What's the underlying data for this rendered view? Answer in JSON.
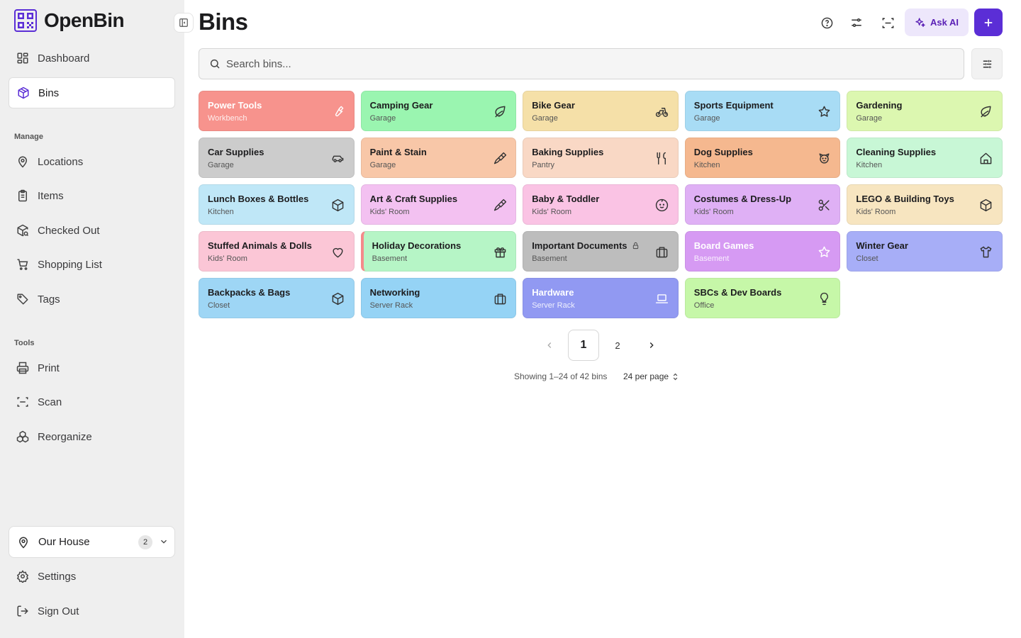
{
  "app": {
    "name": "OpenBin"
  },
  "sidebar": {
    "nav": [
      {
        "label": "Dashboard",
        "icon": "dashboard-icon"
      },
      {
        "label": "Bins",
        "icon": "package-icon",
        "active": true
      }
    ],
    "manage_label": "Manage",
    "manage": [
      {
        "label": "Locations",
        "icon": "map-pin-icon"
      },
      {
        "label": "Items",
        "icon": "clipboard-list-icon"
      },
      {
        "label": "Checked Out",
        "icon": "package-search-icon"
      },
      {
        "label": "Shopping List",
        "icon": "shopping-cart-icon"
      },
      {
        "label": "Tags",
        "icon": "tag-icon"
      }
    ],
    "tools_label": "Tools",
    "tools": [
      {
        "label": "Print",
        "icon": "printer-icon"
      },
      {
        "label": "Scan",
        "icon": "scan-icon"
      },
      {
        "label": "Reorganize",
        "icon": "boxes-icon"
      }
    ],
    "location_switcher": {
      "label": "Our House",
      "count": "2"
    },
    "footer": [
      {
        "label": "Settings",
        "icon": "gear-icon"
      },
      {
        "label": "Sign Out",
        "icon": "sign-out-icon"
      }
    ]
  },
  "header": {
    "title": "Bins",
    "ask_ai_label": "Ask AI"
  },
  "search": {
    "placeholder": "Search bins..."
  },
  "bins": [
    {
      "name": "Power Tools",
      "location": "Workbench",
      "color": "#f7938d",
      "icon": "wrench-icon",
      "light": true
    },
    {
      "name": "Camping Gear",
      "location": "Garage",
      "color": "#9af5b0",
      "icon": "leaf-icon"
    },
    {
      "name": "Bike Gear",
      "location": "Garage",
      "color": "#f5e0a8",
      "icon": "bike-icon"
    },
    {
      "name": "Sports Equipment",
      "location": "Garage",
      "color": "#a8dcf5",
      "icon": "star-icon"
    },
    {
      "name": "Gardening",
      "location": "Garage",
      "color": "#dcf7b0",
      "icon": "leaf-icon"
    },
    {
      "name": "Car Supplies",
      "location": "Garage",
      "color": "#cccccc",
      "icon": "car-icon"
    },
    {
      "name": "Paint & Stain",
      "location": "Garage",
      "color": "#f8c7a8",
      "icon": "paintbrush-icon"
    },
    {
      "name": "Baking Supplies",
      "location": "Pantry",
      "color": "#f9d8c5",
      "icon": "utensils-icon"
    },
    {
      "name": "Dog Supplies",
      "location": "Kitchen",
      "color": "#f5b88f",
      "icon": "dog-icon"
    },
    {
      "name": "Cleaning Supplies",
      "location": "Kitchen",
      "color": "#c8f7d6",
      "icon": "home-icon"
    },
    {
      "name": "Lunch Boxes & Bottles",
      "location": "Kitchen",
      "color": "#bfe7f7",
      "icon": "box-icon"
    },
    {
      "name": "Art & Craft Supplies",
      "location": "Kids' Room",
      "color": "#f3c1f1",
      "icon": "paintbrush-icon"
    },
    {
      "name": "Baby & Toddler",
      "location": "Kids' Room",
      "color": "#fac3e4",
      "icon": "baby-icon"
    },
    {
      "name": "Costumes & Dress-Up",
      "location": "Kids' Room",
      "color": "#dfb0f5",
      "icon": "scissors-icon"
    },
    {
      "name": "LEGO & Building Toys",
      "location": "Kids' Room",
      "color": "#f7e5c0",
      "icon": "box-icon"
    },
    {
      "name": "Stuffed Animals & Dolls",
      "location": "Kids' Room",
      "color": "#fbc6d6",
      "icon": "heart-icon"
    },
    {
      "name": "Holiday Decorations",
      "location": "Basement",
      "color": "#b6f5c6",
      "icon": "gift-icon",
      "accent": "#f48a8a"
    },
    {
      "name": "Important Documents",
      "location": "Basement",
      "color": "#bdbdbd",
      "icon": "briefcase-icon",
      "locked": true
    },
    {
      "name": "Board Games",
      "location": "Basement",
      "color": "#d69af3",
      "icon": "star-icon",
      "light": true
    },
    {
      "name": "Winter Gear",
      "location": "Closet",
      "color": "#a7aef7",
      "icon": "shirt-icon"
    },
    {
      "name": "Backpacks & Bags",
      "location": "Closet",
      "color": "#9ed6f5",
      "icon": "box-icon"
    },
    {
      "name": "Networking",
      "location": "Server Rack",
      "color": "#95d3f5",
      "icon": "briefcase-icon"
    },
    {
      "name": "Hardware",
      "location": "Server Rack",
      "color": "#9199f2",
      "icon": "laptop-icon",
      "light": true
    },
    {
      "name": "SBCs & Dev Boards",
      "location": "Office",
      "color": "#c6f7a8",
      "icon": "lightbulb-icon"
    }
  ],
  "pagination": {
    "pages": [
      "1",
      "2"
    ],
    "current": "1",
    "showing": "Showing 1–24 of 42 bins",
    "per_page": "24 per page"
  }
}
